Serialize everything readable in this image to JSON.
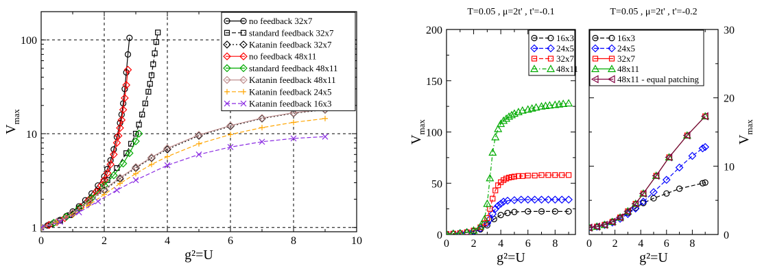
{
  "chart_data": [
    {
      "type": "line",
      "title": "",
      "xlabel": "g²=U",
      "ylabel": "V_max",
      "yscale": "log",
      "xlim": [
        0,
        10
      ],
      "ylim": [
        0.9,
        200
      ],
      "x_ticks": [
        0,
        2,
        4,
        6,
        8,
        10
      ],
      "y_ticks": [
        1,
        10,
        100
      ],
      "grid": "dashed at major ticks",
      "legend_position": "top-right",
      "series": [
        {
          "name": "no feedback 32x7",
          "color": "#000000",
          "marker": "circle",
          "dash": "solid",
          "x": [
            0,
            0.2,
            0.4,
            0.6,
            0.8,
            1.0,
            1.2,
            1.4,
            1.6,
            1.8,
            2.0,
            2.1,
            2.2,
            2.3,
            2.4,
            2.5,
            2.55,
            2.6,
            2.65,
            2.7,
            2.75,
            2.8
          ],
          "y": [
            1.0,
            1.05,
            1.12,
            1.2,
            1.32,
            1.48,
            1.68,
            1.95,
            2.3,
            2.8,
            3.5,
            4.2,
            5.2,
            6.8,
            9.2,
            13,
            16,
            21,
            30,
            45,
            70,
            105
          ]
        },
        {
          "name": "standard feedback 32x7",
          "color": "#000000",
          "marker": "square",
          "dash": "dashed",
          "x": [
            0,
            0.3,
            0.6,
            0.9,
            1.2,
            1.5,
            1.8,
            2.1,
            2.4,
            2.7,
            2.85,
            3.0,
            3.1,
            3.2,
            3.3,
            3.4,
            3.45,
            3.5,
            3.55,
            3.6,
            3.65,
            3.7
          ],
          "y": [
            1.0,
            1.08,
            1.18,
            1.35,
            1.6,
            1.95,
            2.45,
            3.2,
            4.3,
            6.2,
            7.8,
            10,
            12.5,
            16,
            21,
            28,
            34,
            42,
            55,
            72,
            95,
            120
          ]
        },
        {
          "name": "Katanin feedback 32x7",
          "color": "#000000",
          "marker": "diamond",
          "dash": "dotted",
          "x": [
            0,
            0.5,
            1.0,
            1.5,
            2.0,
            2.5,
            3.0,
            3.5,
            4.0,
            5.0,
            6.0,
            7.0,
            8.0,
            9.0
          ],
          "y": [
            1.0,
            1.15,
            1.4,
            1.85,
            2.5,
            3.3,
            4.3,
            5.5,
            6.8,
            9.5,
            12,
            14.5,
            16.5,
            18
          ]
        },
        {
          "name": "no feedback 48x11",
          "color": "#ff0000",
          "marker": "diamond",
          "dash": "solid",
          "x": [
            0,
            0.25,
            0.5,
            0.75,
            1.0,
            1.25,
            1.5,
            1.75,
            1.9,
            2.0,
            2.1,
            2.2,
            2.3,
            2.4,
            2.45,
            2.5,
            2.55,
            2.6,
            2.65,
            2.7,
            2.75
          ],
          "y": [
            1.0,
            1.06,
            1.14,
            1.26,
            1.42,
            1.65,
            1.95,
            2.4,
            2.8,
            3.2,
            3.8,
            4.7,
            6,
            8,
            9.5,
            11.5,
            14,
            18,
            24,
            33,
            48
          ]
        },
        {
          "name": "standard feedback 48x11",
          "color": "#00aa00",
          "marker": "diamond",
          "dash": "solid",
          "x": [
            0,
            0.4,
            0.8,
            1.2,
            1.6,
            2.0,
            2.3,
            2.6,
            2.8,
            3.0,
            3.1
          ],
          "y": [
            1.0,
            1.12,
            1.3,
            1.6,
            2.05,
            2.8,
            3.6,
            4.8,
            6.2,
            8.3,
            10
          ]
        },
        {
          "name": "Katanin feedback 48x11",
          "color": "#c09090",
          "marker": "diamond",
          "dash": "solid",
          "x": [
            0,
            0.5,
            1.0,
            1.5,
            2.0,
            2.5,
            3.0,
            3.5,
            4.0,
            5.0,
            6.0,
            7.0,
            8.0,
            9.0
          ],
          "y": [
            1.0,
            1.15,
            1.42,
            1.88,
            2.55,
            3.4,
            4.4,
            5.6,
            7.0,
            9.7,
            12.2,
            14.7,
            16.7,
            18.2
          ]
        },
        {
          "name": "Katanin feedback 24x5",
          "color": "#ffa500",
          "marker": "plus",
          "dash": "dashed",
          "x": [
            0,
            0.5,
            1.0,
            1.5,
            2.0,
            2.5,
            3.0,
            3.5,
            4.0,
            5.0,
            6.0,
            7.0,
            8.0,
            9.0
          ],
          "y": [
            1.0,
            1.13,
            1.35,
            1.72,
            2.25,
            2.95,
            3.75,
            4.7,
            5.7,
            7.8,
            9.8,
            11.6,
            13.2,
            14.5
          ]
        },
        {
          "name": "Katanin feedback 16x3",
          "color": "#8a2be2",
          "marker": "x",
          "dash": "dashed",
          "x": [
            0,
            0.6,
            1.2,
            1.8,
            2.4,
            3.0,
            4.0,
            5.0,
            6.0,
            7.0,
            8.0,
            9.0
          ],
          "y": [
            1.0,
            1.15,
            1.45,
            1.9,
            2.5,
            3.2,
            4.6,
            6.0,
            7.2,
            8.2,
            8.9,
            9.3
          ]
        }
      ]
    },
    {
      "type": "line",
      "title": "T=0.05 , μ=2t' , t'=-0.1",
      "xlabel": "g²=U",
      "ylabel": "V_max",
      "xlim": [
        0,
        9.5
      ],
      "ylim": [
        0,
        200
      ],
      "x_ticks": [
        0,
        2,
        4,
        6,
        8
      ],
      "y_ticks": [
        0,
        50,
        100,
        150,
        200
      ],
      "legend_position": "top-right",
      "series": [
        {
          "name": "16x3",
          "color": "#000000",
          "marker": "circle",
          "dash": "dashed",
          "x": [
            0,
            0.5,
            1,
            1.5,
            2,
            2.5,
            3,
            3.5,
            4,
            4.5,
            5,
            6,
            7,
            8,
            9
          ],
          "y": [
            0.5,
            0.8,
            1.2,
            2,
            3,
            5,
            9,
            15,
            19,
            21,
            22,
            22.5,
            22.5,
            22.5,
            22.5
          ]
        },
        {
          "name": "24x5",
          "color": "#0000ff",
          "marker": "diamond",
          "dash": "dashed",
          "x": [
            0,
            0.5,
            1,
            1.5,
            2,
            2.5,
            3,
            3.2,
            3.4,
            3.6,
            3.8,
            4,
            4.2,
            4.5,
            5,
            5.5,
            6,
            6.5,
            7,
            7.5,
            8,
            8.5,
            9
          ],
          "y": [
            0.5,
            0.8,
            1.3,
            2.2,
            3.5,
            6,
            11,
            15,
            20,
            25,
            28,
            30,
            32,
            33,
            33.5,
            34,
            34,
            34,
            34,
            34,
            34,
            34,
            34
          ]
        },
        {
          "name": "32x7",
          "color": "#ff0000",
          "marker": "square",
          "dash": "dashed",
          "x": [
            0,
            0.5,
            1,
            1.5,
            2,
            2.5,
            2.8,
            3,
            3.2,
            3.4,
            3.6,
            3.8,
            4,
            4.2,
            4.4,
            4.6,
            4.8,
            5,
            5.3,
            5.6,
            6,
            6.5,
            7,
            7.5,
            8,
            8.5,
            9
          ],
          "y": [
            0.5,
            0.8,
            1.3,
            2.2,
            3.8,
            7,
            11,
            16,
            25,
            35,
            43,
            48,
            51,
            53,
            54.5,
            55.5,
            56,
            56.5,
            57,
            57,
            57.5,
            57.5,
            58,
            58,
            58,
            58,
            58
          ]
        },
        {
          "name": "48x11",
          "color": "#00aa00",
          "marker": "triangle",
          "dash": "dashdot",
          "x": [
            0,
            0.5,
            1,
            1.5,
            2,
            2.5,
            2.8,
            3,
            3.2,
            3.4,
            3.6,
            3.8,
            4,
            4.2,
            4.4,
            4.6,
            4.8,
            5,
            5.3,
            5.6,
            6,
            6.3,
            6.6,
            7,
            7.3,
            7.6,
            8,
            8.3,
            8.6,
            9
          ],
          "y": [
            0.5,
            0.8,
            1.3,
            2.2,
            4,
            8,
            15,
            30,
            55,
            80,
            95,
            103,
            108,
            111,
            113,
            115,
            116.5,
            118,
            119.5,
            121,
            122,
            123,
            124,
            125,
            125.5,
            126,
            126.5,
            127,
            127.5,
            128
          ]
        }
      ]
    },
    {
      "type": "line",
      "title": "T=0.05 , μ=2t' , t'=-0.2",
      "xlabel": "g²=U",
      "ylabel": "V_max",
      "xlim": [
        0,
        10
      ],
      "ylim": [
        0,
        30
      ],
      "x_ticks": [
        0,
        2,
        4,
        6,
        8
      ],
      "y_ticks": [
        0,
        10,
        20,
        30
      ],
      "legend_position": "top-left",
      "series": [
        {
          "name": "16x3",
          "color": "#000000",
          "marker": "circle",
          "dash": "dashed",
          "x": [
            0,
            0.6,
            1.2,
            1.8,
            2.4,
            3.0,
            3.6,
            4.2,
            5.0,
            6.0,
            7.0,
            8.8,
            9.0
          ],
          "y": [
            1.0,
            1.15,
            1.45,
            1.9,
            2.5,
            3.2,
            3.9,
            4.6,
            5.3,
            6.0,
            6.7,
            7.5,
            7.6
          ]
        },
        {
          "name": "24x5",
          "color": "#0000ff",
          "marker": "diamond",
          "dash": "dashed",
          "x": [
            0,
            0.6,
            1.2,
            1.8,
            2.4,
            3.0,
            3.6,
            4.2,
            5.0,
            6.0,
            7.0,
            8.0,
            8.8,
            9.0
          ],
          "y": [
            1.0,
            1.15,
            1.4,
            1.75,
            2.3,
            3.0,
            3.8,
            4.8,
            6.2,
            8.0,
            9.8,
            11.5,
            12.6,
            12.8
          ]
        },
        {
          "name": "32x7",
          "color": "#ff0000",
          "marker": "square",
          "dash": "solid",
          "x": [
            0,
            0.6,
            1.2,
            1.8,
            2.4,
            3.0,
            3.6,
            4.2,
            5.2,
            6.2,
            7.6,
            9.0
          ],
          "y": [
            1.0,
            1.15,
            1.42,
            1.85,
            2.5,
            3.4,
            4.5,
            6.0,
            8.6,
            11.3,
            14.5,
            17.3
          ]
        },
        {
          "name": "48x11",
          "color": "#00aa00",
          "marker": "triangle",
          "dash": "solid",
          "x": [
            0,
            0.6,
            1.2,
            1.8,
            2.4,
            3.0,
            3.6,
            4.2,
            5.2,
            6.2,
            7.6,
            9.0
          ],
          "y": [
            1.0,
            1.15,
            1.42,
            1.85,
            2.5,
            3.4,
            4.5,
            6.0,
            8.6,
            11.3,
            14.5,
            17.3
          ]
        },
        {
          "name": "48x11 - equal patching",
          "color": "#800040",
          "marker": "triangle-left",
          "dash": "solid",
          "x": [
            0,
            0.6,
            1.2,
            1.8,
            2.4,
            3.0,
            3.6,
            4.2,
            5.2,
            6.2,
            7.6,
            9.0
          ],
          "y": [
            1.0,
            1.15,
            1.42,
            1.85,
            2.5,
            3.4,
            4.5,
            6.0,
            8.6,
            11.3,
            14.5,
            17.3
          ]
        }
      ]
    }
  ]
}
